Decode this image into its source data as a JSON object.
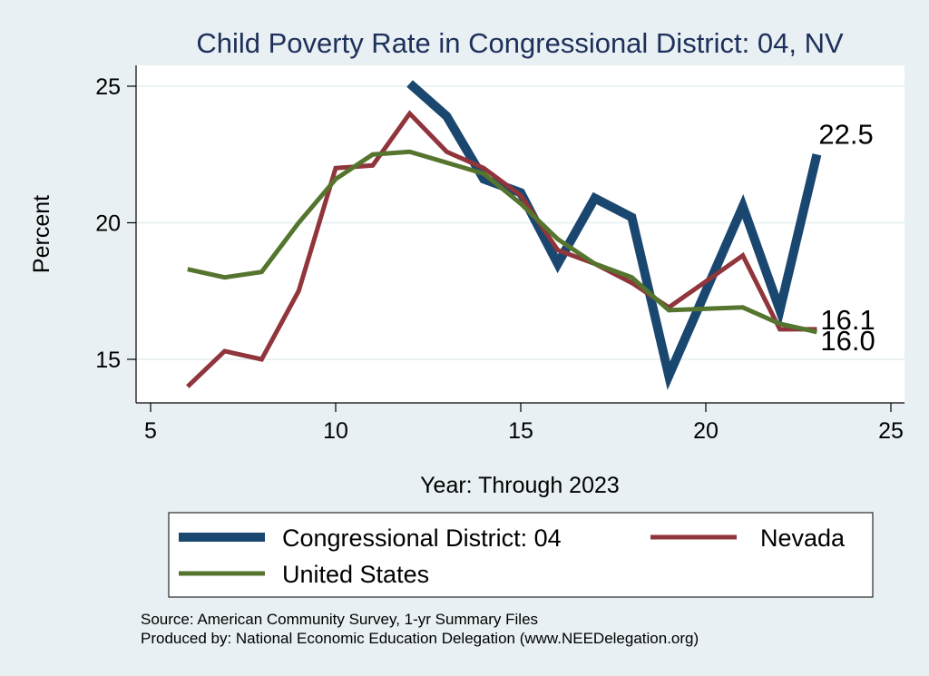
{
  "chart_data": {
    "type": "line",
    "title": "Child Poverty Rate in Congressional District:  04, NV",
    "xlabel": "Year: Through 2023",
    "ylabel": "Percent",
    "xlim": [
      5,
      25
    ],
    "ylim": [
      15,
      25
    ],
    "xticks": [
      5,
      10,
      15,
      20,
      25
    ],
    "yticks": [
      15,
      20,
      25
    ],
    "grid": true,
    "legend_position": "bottom",
    "series": [
      {
        "name": "Congressional District:  04",
        "color": "#1a476f",
        "x": [
          12,
          13,
          14,
          15,
          16,
          17,
          18,
          19,
          21,
          22,
          23
        ],
        "values": [
          25.1,
          23.9,
          21.6,
          21.1,
          18.5,
          20.9,
          20.2,
          14.4,
          20.6,
          16.8,
          22.5
        ],
        "end_label": "22.5"
      },
      {
        "name": "Nevada",
        "color": "#90353b",
        "x": [
          6,
          7,
          8,
          9,
          10,
          11,
          12,
          13,
          14,
          15,
          16,
          17,
          18,
          19,
          21,
          22,
          23
        ],
        "values": [
          14.0,
          15.3,
          15.0,
          17.5,
          22.0,
          22.1,
          24.0,
          22.6,
          22.0,
          21.0,
          19.0,
          18.5,
          17.8,
          16.9,
          18.8,
          16.1,
          16.1
        ],
        "end_label": "16.1"
      },
      {
        "name": "United States",
        "color": "#55752f",
        "x": [
          6,
          7,
          8,
          9,
          10,
          11,
          12,
          13,
          14,
          15,
          16,
          17,
          18,
          19,
          21,
          22,
          23
        ],
        "values": [
          18.3,
          18.0,
          18.2,
          20.0,
          21.6,
          22.5,
          22.6,
          22.2,
          21.8,
          20.7,
          19.4,
          18.5,
          18.0,
          16.8,
          16.9,
          16.3,
          16.0
        ],
        "end_label": "16.0"
      }
    ],
    "notes": [
      "Source: American Community Survey, 1-yr Summary Files",
      "Produced by: National Economic Education Delegation (www.NEEDelegation.org)"
    ]
  }
}
